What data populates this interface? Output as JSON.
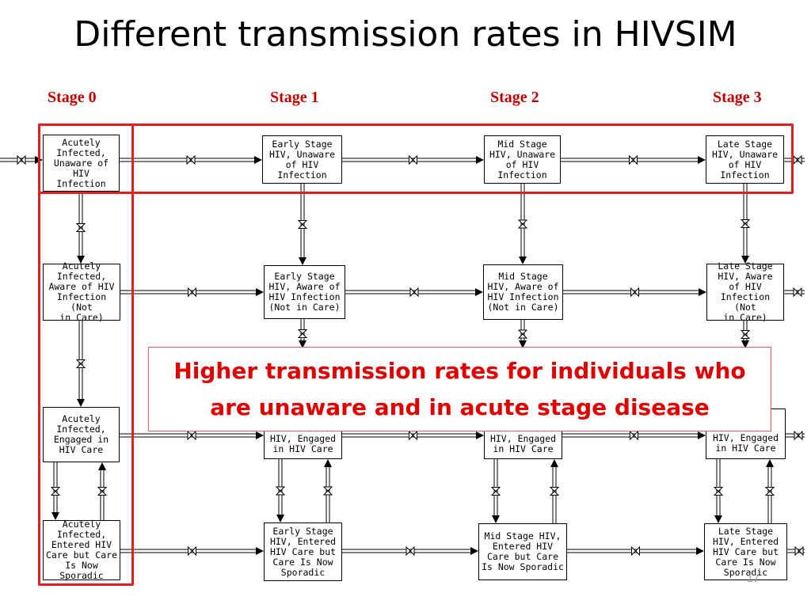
{
  "title": "Different transmission rates in HIVSIM",
  "stages": [
    "Stage 0",
    "Stage 1",
    "Stage 2",
    "Stage 3"
  ],
  "boxes": {
    "r0c0": "Acutely\nInfected,\nUnaware of\nHIV\nInfection",
    "r0c1": "Early Stage\nHIV, Unaware\nof HIV\nInfection",
    "r0c2": "Mid Stage\nHIV, Unaware\nof HIV\nInfection",
    "r0c3": "Late Stage\nHIV, Unaware\nof HIV\nInfection",
    "r1c0": "Acutely\nInfected,\nAware of HIV\nInfection (Not\nin Care)",
    "r1c1": "Early Stage\nHIV, Aware of\nHIV Infection\n(Not in Care)",
    "r1c2": "Mid Stage\nHIV, Aware of\nHIV Infection\n(Not in Care)",
    "r1c3": "Late Stage\nHIV, Aware\nof HIV\nInfection (Not\nin Care)",
    "r2c0": "Acutely\nInfected,\nEngaged in\nHIV Care",
    "r2c1": "HIV, Engaged\nin HIV Care",
    "r2c2": "HIV, Engaged\nin HIV Care",
    "r2c3": "HIV, Engaged\nin HIV Care",
    "r3c0": "Acutely\nInfected,\nEntered HIV\nCare but Care\nIs Now\nSporadic",
    "r3c1": "Early Stage\nHIV, Entered\nHIV Care but\nCare Is Now\nSporadic",
    "r3c2": "Mid Stage HIV,\nEntered HIV\nCare but Care\nIs Now Sporadic",
    "r3c3": "Late Stage\nHIV, Entered\nHIV Care but\nCare Is Now\nSporadic"
  },
  "callout": "Higher transmission rates for individuals who are unaware and in acute stage disease",
  "page_number": "17",
  "colors": {
    "highlight": "#e02020",
    "stage_label": "#c00000",
    "callout_text": "#e00000"
  }
}
